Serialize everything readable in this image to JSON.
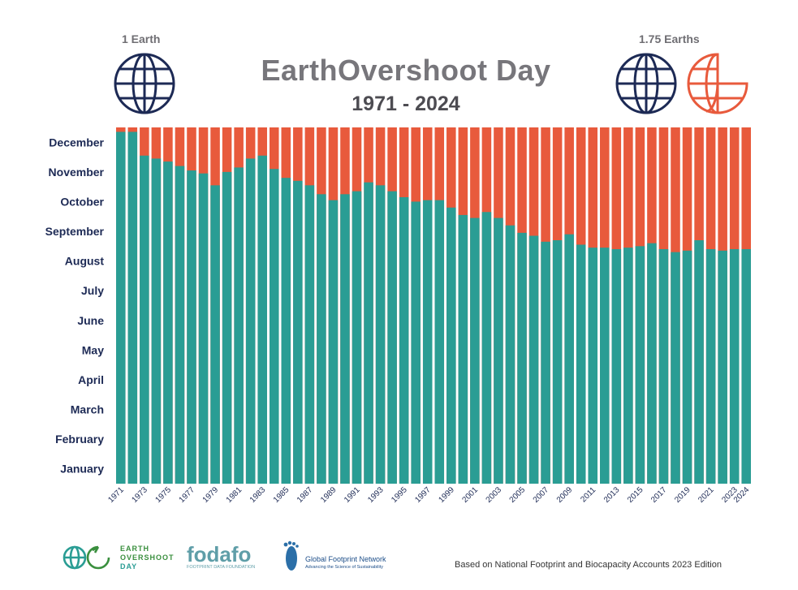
{
  "header": {
    "title": "EarthOvershoot Day",
    "subtitle": "1971 - 2024",
    "left_label": "1 Earth",
    "right_label": "1.75 Earths"
  },
  "footer": {
    "note": "Based on National Footprint and Biocapacity Accounts 2023 Edition",
    "logo1_line1": "EARTH",
    "logo1_line2": "OVERSHOOT",
    "logo1_line3": "DAY",
    "logo2_name": "fodafo",
    "logo2_sub": "FOOTPRINT DATA FOUNDATION",
    "logo3_name": "Global Footprint Network",
    "logo3_sub": "Advancing the Science of Sustainability"
  },
  "colors": {
    "teal": "#2a9d94",
    "orange": "#e85a3c",
    "navy": "#1d2a55",
    "title_gray": "#77767b"
  },
  "chart_data": {
    "type": "bar",
    "title": "EarthOvershoot Day",
    "subtitle": "1971 - 2024",
    "xlabel": "",
    "ylabel": "",
    "y_axis_labels": [
      "January",
      "February",
      "March",
      "April",
      "May",
      "June",
      "July",
      "August",
      "September",
      "October",
      "November",
      "December"
    ],
    "y_unit": "month of year (1 = start of January, 13 = end of December)",
    "ylim": [
      1,
      13
    ],
    "x_tick_labels": [
      "1971",
      "1973",
      "1975",
      "1977",
      "1979",
      "1981",
      "1983",
      "1985",
      "1987",
      "1989",
      "1991",
      "1993",
      "1995",
      "1997",
      "1999",
      "2001",
      "2003",
      "2005",
      "2007",
      "2009",
      "2011",
      "2013",
      "2015",
      "2017",
      "2019",
      "2021",
      "2023",
      "2024"
    ],
    "categories": [
      "1971",
      "1972",
      "1973",
      "1974",
      "1975",
      "1976",
      "1977",
      "1978",
      "1979",
      "1980",
      "1981",
      "1982",
      "1983",
      "1984",
      "1985",
      "1986",
      "1987",
      "1988",
      "1989",
      "1990",
      "1991",
      "1992",
      "1993",
      "1994",
      "1995",
      "1996",
      "1997",
      "1998",
      "1999",
      "2000",
      "2001",
      "2002",
      "2003",
      "2004",
      "2005",
      "2006",
      "2007",
      "2008",
      "2009",
      "2010",
      "2011",
      "2012",
      "2013",
      "2014",
      "2015",
      "2016",
      "2017",
      "2018",
      "2019",
      "2020",
      "2021",
      "2022",
      "2023",
      "2024"
    ],
    "series": [
      {
        "values": [
          12.85,
          12.85,
          12.05,
          11.95,
          11.85,
          11.7,
          11.55,
          11.45,
          11.05,
          11.5,
          11.65,
          11.95,
          12.05,
          11.6,
          11.3,
          11.2,
          11.05,
          10.75,
          10.55,
          10.75,
          10.85,
          11.15,
          11.05,
          10.85,
          10.65,
          10.5,
          10.55,
          10.55,
          10.3,
          10.05,
          9.95,
          10.15,
          9.95,
          9.7,
          9.45,
          9.35,
          9.15,
          9.2,
          9.4,
          9.05,
          8.95,
          8.95,
          8.9,
          8.95,
          9.0,
          9.1,
          8.9,
          8.8,
          8.85,
          9.2,
          8.9,
          8.85,
          8.9,
          8.9
        ]
      }
    ]
  }
}
